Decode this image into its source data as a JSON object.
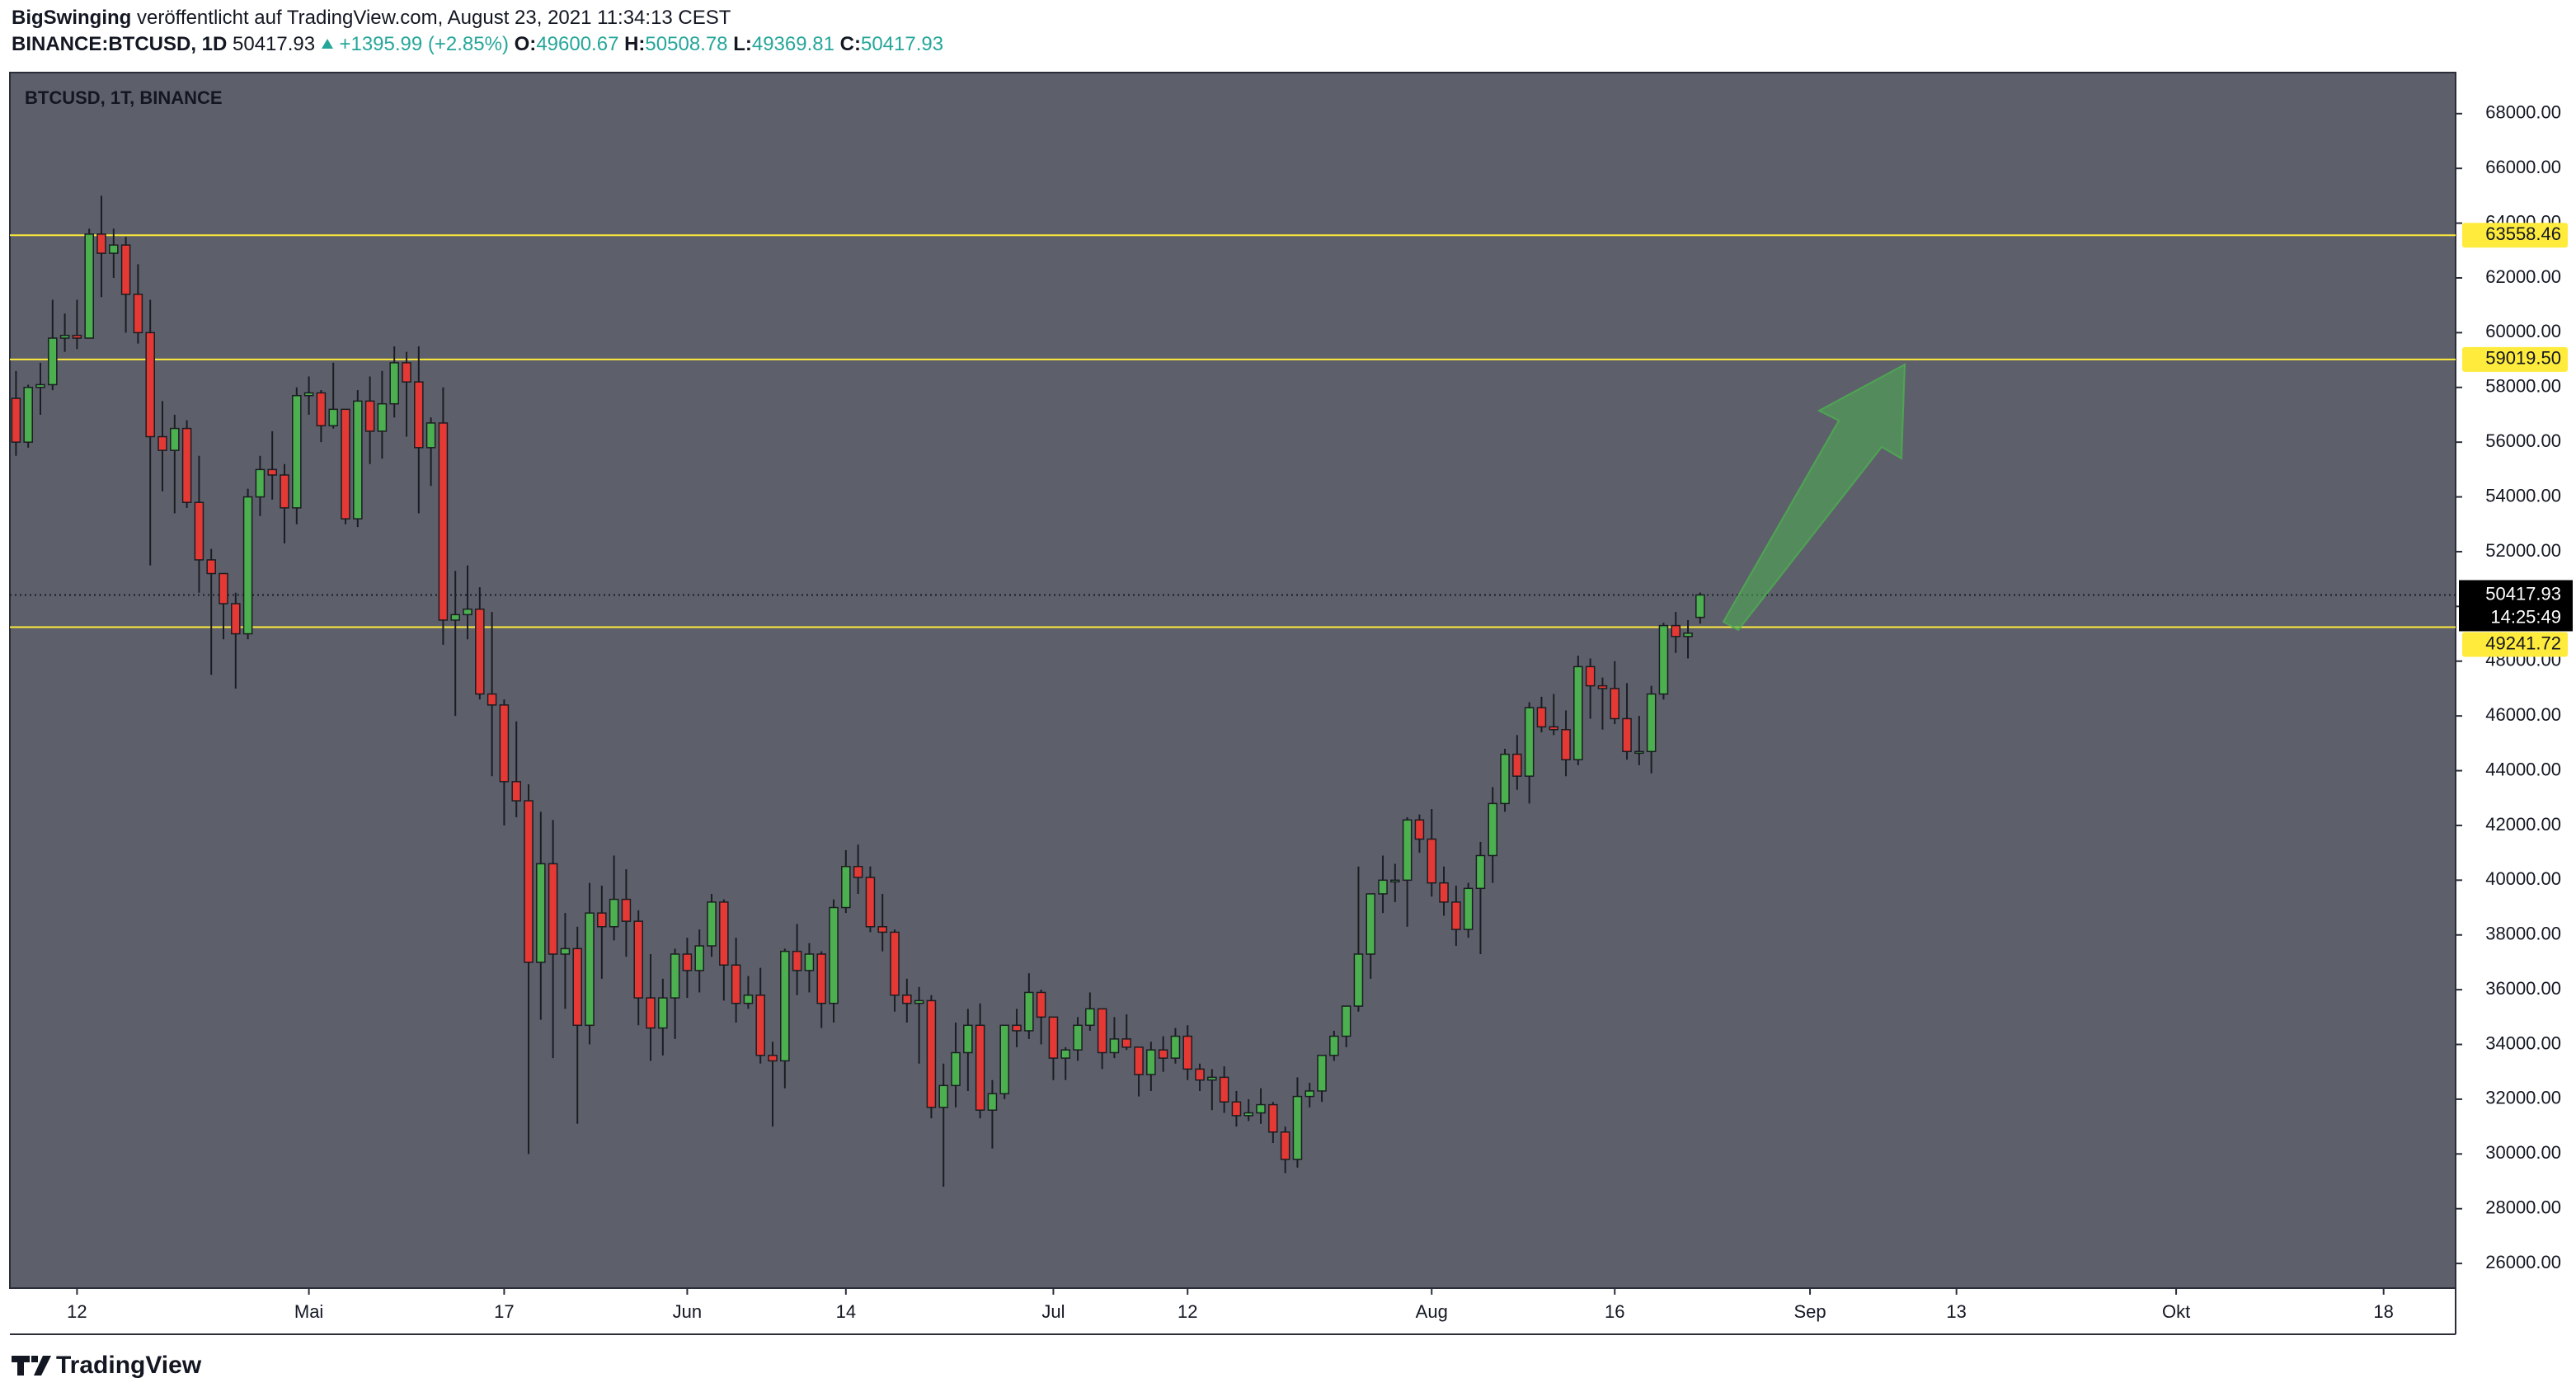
{
  "header": {
    "author": "BigSwinging",
    "published": "veröffentlicht auf TradingView.com, August 23, 2021 11:34:13 CEST",
    "symbol": "BINANCE:BTCUSD, 1D",
    "change": "+1395.99 (+2.85%)",
    "ohlc_labels": [
      "O:",
      "H:",
      "L:",
      "C:"
    ]
  },
  "footer": {
    "brand": "TradingView"
  },
  "chart_data": {
    "type": "candlestick",
    "title": "BTCUSD, 1T, BINANCE",
    "up_color": "#4caf50",
    "down_color": "#e53935",
    "grid": false,
    "x": [
      97,
      98,
      99,
      100,
      101,
      102,
      103,
      104,
      105,
      106,
      107,
      108,
      109,
      110,
      111,
      112,
      113,
      114,
      115,
      116,
      117,
      118,
      119,
      120,
      121,
      122,
      123,
      124,
      125,
      126,
      127,
      128,
      129,
      130,
      131,
      132,
      133,
      134,
      135,
      136,
      137,
      138,
      139,
      140,
      141,
      142,
      143,
      144,
      145,
      146,
      147,
      148,
      149,
      150,
      151,
      152,
      153,
      154,
      155,
      156,
      157,
      158,
      159,
      160,
      161,
      162,
      163,
      164,
      165,
      166,
      167,
      168,
      169,
      170,
      171,
      172,
      173,
      174,
      175,
      176,
      177,
      178,
      179,
      180,
      181,
      182,
      183,
      184,
      185,
      186,
      187,
      188,
      189,
      190,
      191,
      192,
      193,
      194,
      195,
      196,
      197,
      198,
      199,
      200,
      201,
      202,
      203,
      204,
      205,
      206,
      207,
      208,
      209,
      210,
      211,
      212,
      213,
      214,
      215,
      216,
      217,
      218,
      219,
      220,
      221,
      222,
      223,
      224,
      225,
      226,
      227,
      228,
      229,
      230,
      231,
      232,
      233,
      234,
      235
    ],
    "open": [
      57600,
      56000,
      58000,
      58100,
      59800,
      59900,
      59800,
      63600,
      62900,
      63200,
      61400,
      60000,
      56200,
      55700,
      56500,
      53800,
      51700,
      51200,
      50100,
      49000,
      54000,
      55000,
      54800,
      53600,
      57700,
      57800,
      56600,
      57200,
      53200,
      57500,
      56400,
      57400,
      58900,
      58200,
      55800,
      56700,
      49500,
      49700,
      49900,
      46800,
      46400,
      43600,
      42900,
      37000,
      40600,
      37300,
      37500,
      34700,
      38800,
      38300,
      39300,
      38500,
      35700,
      34600,
      35700,
      37300,
      36700,
      37600,
      39200,
      36900,
      35500,
      35800,
      33600,
      33400,
      37400,
      36700,
      37300,
      35500,
      39000,
      40500,
      40100,
      38300,
      38100,
      35800,
      35500,
      35600,
      31700,
      32500,
      33700,
      34700,
      31600,
      32200,
      34700,
      34500,
      35900,
      35000,
      33500,
      33800,
      34700,
      35300,
      33700,
      34200,
      33900,
      32900,
      33800,
      33500,
      34300,
      33100,
      32700,
      32800,
      31900,
      31400,
      31500,
      31800,
      30800,
      29800,
      32100,
      32300,
      33600,
      34300,
      35400,
      37300,
      39500,
      40000,
      40000,
      42200,
      41500,
      39900,
      39200,
      38200,
      39700,
      40900,
      42800,
      44600,
      43800,
      46300,
      45600,
      45500,
      44400,
      47800,
      47100,
      47000,
      45900,
      44700,
      44700,
      46800,
      49300,
      48900,
      49600.67
    ],
    "high": [
      58600,
      58100,
      58900,
      61200,
      60700,
      61200,
      63800,
      65000,
      63800,
      63500,
      62500,
      61200,
      57500,
      57000,
      56800,
      55500,
      52100,
      51200,
      50500,
      54300,
      55500,
      56400,
      55200,
      58000,
      58400,
      57900,
      58900,
      57200,
      57900,
      58400,
      58600,
      59500,
      59300,
      59500,
      56900,
      58000,
      51300,
      51500,
      50700,
      49800,
      46600,
      45800,
      43500,
      42500,
      42200,
      38800,
      38300,
      39900,
      39800,
      40900,
      40400,
      38900,
      37300,
      36400,
      37500,
      37900,
      38200,
      39500,
      39300,
      37900,
      36500,
      36800,
      34100,
      37500,
      38400,
      37700,
      37400,
      39300,
      41100,
      41300,
      40500,
      39500,
      38200,
      36400,
      36100,
      35800,
      33300,
      34800,
      35300,
      35500,
      32700,
      34700,
      35300,
      36600,
      36000,
      35000,
      33900,
      35000,
      35900,
      35300,
      35000,
      35100,
      33900,
      34100,
      34300,
      34600,
      34700,
      33300,
      33100,
      33200,
      32300,
      32000,
      32400,
      31900,
      31000,
      32800,
      32600,
      33600,
      34500,
      35400,
      40500,
      39500,
      40900,
      40600,
      42300,
      42400,
      42600,
      40500,
      39800,
      39900,
      41400,
      43400,
      44800,
      45300,
      46500,
      46700,
      46800,
      46200,
      48200,
      48100,
      47400,
      48000,
      47200,
      46000,
      47100,
      49400,
      49800,
      49500,
      50508.78
    ],
    "low": [
      55500,
      55800,
      57000,
      57900,
      59300,
      59400,
      59800,
      61300,
      62000,
      60000,
      59600,
      51500,
      54200,
      53400,
      53600,
      50500,
      47500,
      48800,
      47000,
      48800,
      53300,
      53900,
      52300,
      53000,
      57000,
      56000,
      56500,
      53000,
      52900,
      55200,
      55400,
      56900,
      56200,
      53400,
      54400,
      48600,
      46000,
      48800,
      46600,
      43800,
      42000,
      42300,
      30000,
      34900,
      33500,
      35300,
      31100,
      34000,
      36400,
      37800,
      37200,
      34700,
      33400,
      33600,
      34200,
      35700,
      35900,
      37200,
      35600,
      34800,
      35300,
      33300,
      31000,
      32400,
      35800,
      35900,
      34600,
      34800,
      38800,
      39500,
      38100,
      37400,
      35200,
      34800,
      33300,
      31300,
      28800,
      31700,
      32300,
      31300,
      30200,
      32000,
      33900,
      34200,
      34000,
      32700,
      32700,
      33400,
      34500,
      33100,
      33500,
      33800,
      32100,
      32300,
      33000,
      33300,
      32700,
      32300,
      31600,
      31500,
      31000,
      31200,
      31100,
      30400,
      29300,
      29500,
      31700,
      31900,
      33400,
      33900,
      35200,
      36400,
      38800,
      39200,
      38300,
      41000,
      39400,
      38700,
      37600,
      37900,
      37300,
      39900,
      42500,
      43300,
      42800,
      45400,
      45300,
      43800,
      44200,
      45900,
      45500,
      45700,
      44400,
      44200,
      43900,
      46600,
      48300,
      48100,
      49369.81
    ],
    "close": [
      56000,
      58000,
      58100,
      59800,
      59900,
      59800,
      63600,
      62900,
      63200,
      61400,
      60000,
      56200,
      55700,
      56500,
      53800,
      51700,
      51200,
      50100,
      49000,
      54000,
      55000,
      54800,
      53600,
      57700,
      57800,
      56600,
      57200,
      53200,
      57500,
      56400,
      57400,
      58900,
      58200,
      55800,
      56700,
      49500,
      49700,
      49900,
      46800,
      46400,
      43600,
      42900,
      37000,
      40600,
      37300,
      37500,
      34700,
      38800,
      38300,
      39300,
      38500,
      35700,
      34600,
      35700,
      37300,
      36700,
      37600,
      39200,
      36900,
      35500,
      35800,
      33600,
      33400,
      37400,
      36700,
      37300,
      35500,
      39000,
      40500,
      40100,
      38300,
      38100,
      35800,
      35500,
      35600,
      31700,
      32500,
      33700,
      34700,
      31600,
      32200,
      34700,
      34500,
      35900,
      35000,
      33500,
      33800,
      34700,
      35300,
      33700,
      34200,
      33900,
      32900,
      33800,
      33500,
      34300,
      33100,
      32700,
      32800,
      31900,
      31400,
      31500,
      31800,
      30800,
      29800,
      32100,
      32300,
      33600,
      34300,
      35400,
      37300,
      39500,
      40000,
      40000,
      42200,
      41500,
      39900,
      39200,
      38200,
      39700,
      40900,
      42800,
      44600,
      43800,
      46300,
      45600,
      45500,
      44400,
      47800,
      47100,
      47000,
      45900,
      44700,
      44700,
      46800,
      49300,
      48900,
      49022,
      50417.93
    ],
    "xlim": [
      96.5,
      296.9
    ],
    "ylim": [
      25100,
      69500
    ],
    "xticks": [
      {
        "value": 102,
        "label": "12"
      },
      {
        "value": 121,
        "label": "Mai"
      },
      {
        "value": 137,
        "label": "17"
      },
      {
        "value": 152,
        "label": "Jun"
      },
      {
        "value": 165,
        "label": "14"
      },
      {
        "value": 182,
        "label": "Jul"
      },
      {
        "value": 193,
        "label": "12"
      },
      {
        "value": 213,
        "label": "Aug"
      },
      {
        "value": 228,
        "label": "16"
      },
      {
        "value": 244,
        "label": "Sep"
      },
      {
        "value": 256,
        "label": "13"
      },
      {
        "value": 274,
        "label": "Okt"
      },
      {
        "value": 291,
        "label": "18"
      }
    ],
    "yticks": [
      {
        "value": 26000,
        "label": "26000.00"
      },
      {
        "value": 28000,
        "label": "28000.00"
      },
      {
        "value": 30000,
        "label": "30000.00"
      },
      {
        "value": 32000,
        "label": "32000.00"
      },
      {
        "value": 34000,
        "label": "34000.00"
      },
      {
        "value": 36000,
        "label": "36000.00"
      },
      {
        "value": 38000,
        "label": "38000.00"
      },
      {
        "value": 40000,
        "label": "40000.00"
      },
      {
        "value": 42000,
        "label": "42000.00"
      },
      {
        "value": 44000,
        "label": "44000.00"
      },
      {
        "value": 46000,
        "label": "46000.00"
      },
      {
        "value": 48000,
        "label": "48000.00"
      },
      {
        "value": 50000,
        "label": "50000.00"
      },
      {
        "value": 52000,
        "label": "52000.00"
      },
      {
        "value": 54000,
        "label": "54000.00"
      },
      {
        "value": 56000,
        "label": "56000.00"
      },
      {
        "value": 58000,
        "label": "58000.00"
      },
      {
        "value": 60000,
        "label": "60000.00"
      },
      {
        "value": 62000,
        "label": "62000.00"
      },
      {
        "value": 64000,
        "label": "64000.00"
      },
      {
        "value": 66000,
        "label": "66000.00"
      },
      {
        "value": 68000,
        "label": "68000.00"
      }
    ],
    "levels": [
      63558.46,
      {
        "value": 59019.5,
        "label": "59019.50"
      },
      49241.72
    ],
    "level_color": "#ffeb3b",
    "countdown": "14:25:49"
  }
}
